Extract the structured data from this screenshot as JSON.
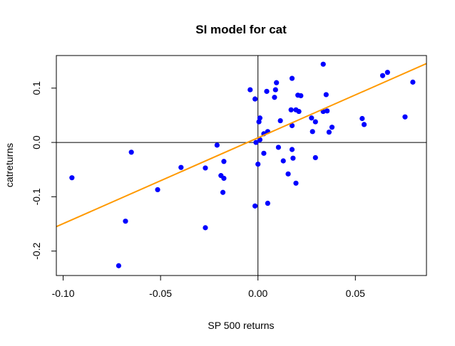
{
  "chart_data": {
    "type": "scatter",
    "title": "SI model for cat",
    "xlabel": "SP 500 returns",
    "ylabel": "catreturns",
    "xlim": [
      -0.1035,
      0.0865
    ],
    "ylim": [
      -0.245,
      0.16
    ],
    "x_ticks": [
      -0.1,
      -0.05,
      0.0,
      0.05
    ],
    "x_tick_labels": [
      "-0.10",
      "-0.05",
      "0.00",
      "0.05"
    ],
    "y_ticks": [
      -0.2,
      -0.1,
      0.0,
      0.1
    ],
    "y_tick_labels": [
      "-0.2",
      "-0.1",
      "0.0",
      "0.1"
    ],
    "reference_lines": {
      "h": 0,
      "v": 0
    },
    "grid": false,
    "point_color": "#0000ff",
    "line_color": "#ff9900",
    "fit_line": {
      "intercept": 0.0085,
      "slope": 1.58
    },
    "points": [
      {
        "x": -0.0955,
        "y": -0.065
      },
      {
        "x": -0.0715,
        "y": -0.227
      },
      {
        "x": -0.068,
        "y": -0.145
      },
      {
        "x": -0.065,
        "y": -0.018
      },
      {
        "x": -0.0515,
        "y": -0.087
      },
      {
        "x": -0.0395,
        "y": -0.046
      },
      {
        "x": -0.027,
        "y": -0.047
      },
      {
        "x": -0.027,
        "y": -0.157
      },
      {
        "x": -0.021,
        "y": -0.005
      },
      {
        "x": -0.019,
        "y": -0.061
      },
      {
        "x": -0.018,
        "y": -0.092
      },
      {
        "x": -0.0175,
        "y": -0.066
      },
      {
        "x": -0.0175,
        "y": -0.035
      },
      {
        "x": -0.004,
        "y": 0.097
      },
      {
        "x": -0.0015,
        "y": 0.08
      },
      {
        "x": -0.0015,
        "y": -0.117
      },
      {
        "x": -0.001,
        "y": 0.0
      },
      {
        "x": 0.0,
        "y": -0.04
      },
      {
        "x": 0.001,
        "y": 0.005
      },
      {
        "x": 0.0005,
        "y": 0.038
      },
      {
        "x": 0.001,
        "y": 0.045
      },
      {
        "x": 0.003,
        "y": -0.02
      },
      {
        "x": 0.003,
        "y": 0.016
      },
      {
        "x": 0.0045,
        "y": 0.094
      },
      {
        "x": 0.005,
        "y": 0.02
      },
      {
        "x": 0.005,
        "y": -0.112
      },
      {
        "x": 0.0085,
        "y": 0.083
      },
      {
        "x": 0.009,
        "y": 0.097
      },
      {
        "x": 0.0095,
        "y": 0.11
      },
      {
        "x": 0.0105,
        "y": -0.009
      },
      {
        "x": 0.0115,
        "y": 0.04
      },
      {
        "x": 0.013,
        "y": -0.034
      },
      {
        "x": 0.0155,
        "y": -0.058
      },
      {
        "x": 0.017,
        "y": 0.06
      },
      {
        "x": 0.0175,
        "y": 0.031
      },
      {
        "x": 0.0175,
        "y": -0.013
      },
      {
        "x": 0.0175,
        "y": 0.118
      },
      {
        "x": 0.018,
        "y": -0.029
      },
      {
        "x": 0.0195,
        "y": 0.06
      },
      {
        "x": 0.0195,
        "y": -0.075
      },
      {
        "x": 0.0205,
        "y": 0.087
      },
      {
        "x": 0.021,
        "y": 0.057
      },
      {
        "x": 0.022,
        "y": 0.086
      },
      {
        "x": 0.0275,
        "y": 0.045
      },
      {
        "x": 0.028,
        "y": 0.02
      },
      {
        "x": 0.0295,
        "y": 0.038
      },
      {
        "x": 0.0295,
        "y": -0.028
      },
      {
        "x": 0.0335,
        "y": 0.057
      },
      {
        "x": 0.0335,
        "y": 0.144
      },
      {
        "x": 0.035,
        "y": 0.088
      },
      {
        "x": 0.0355,
        "y": 0.058
      },
      {
        "x": 0.0365,
        "y": 0.019
      },
      {
        "x": 0.038,
        "y": 0.028
      },
      {
        "x": 0.0535,
        "y": 0.044
      },
      {
        "x": 0.0545,
        "y": 0.033
      },
      {
        "x": 0.064,
        "y": 0.123
      },
      {
        "x": 0.0665,
        "y": 0.129
      },
      {
        "x": 0.0755,
        "y": 0.047
      },
      {
        "x": 0.0795,
        "y": 0.111
      }
    ]
  }
}
